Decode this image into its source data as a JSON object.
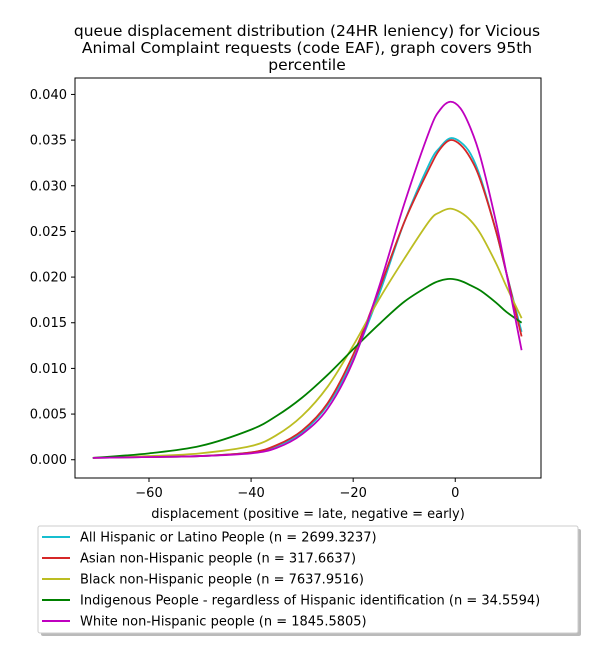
{
  "chart_data": {
    "type": "line",
    "title": [
      "queue displacement distribution (24HR leniency) for Vicious",
      "Animal Complaint  requests (code EAF), graph covers 95th",
      "percentile"
    ],
    "xlabel": "displacement (positive = late, negative = early)",
    "ylabel": "",
    "xlim": [
      -74.5,
      16.8
    ],
    "ylim": [
      -0.002,
      0.0418
    ],
    "xticks": [
      -60,
      -40,
      -20,
      0
    ],
    "xtick_labels": [
      "−60",
      "−40",
      "−20",
      "0"
    ],
    "yticks": [
      0.0,
      0.005,
      0.01,
      0.015,
      0.02,
      0.025,
      0.03,
      0.035,
      0.04
    ],
    "ytick_labels": [
      "0.000",
      "0.005",
      "0.010",
      "0.015",
      "0.020",
      "0.025",
      "0.030",
      "0.035",
      "0.040"
    ],
    "grid": false,
    "legend_position": "below plot",
    "series": [
      {
        "name": "All Hispanic or Latino People (n = 2699.3237)",
        "color": "#17becf",
        "x": [
          -71,
          -60,
          -50,
          -40,
          -35,
          -30,
          -25,
          -20,
          -15,
          -10,
          -5,
          -3,
          -1,
          1,
          3,
          5,
          8,
          10,
          13
        ],
        "y": [
          0.0002,
          0.0003,
          0.0004,
          0.0008,
          0.0015,
          0.003,
          0.006,
          0.011,
          0.018,
          0.026,
          0.0325,
          0.0342,
          0.0352,
          0.0348,
          0.0335,
          0.0308,
          0.025,
          0.0205,
          0.014
        ]
      },
      {
        "name": "Asian non-Hispanic people (n = 317.6637)",
        "color": "#d62728",
        "x": [
          -71,
          -60,
          -50,
          -40,
          -35,
          -30,
          -25,
          -20,
          -15,
          -10,
          -5,
          -3,
          -1,
          1,
          3,
          5,
          8,
          10,
          13
        ],
        "y": [
          0.0002,
          0.0003,
          0.0004,
          0.0008,
          0.0016,
          0.0032,
          0.0062,
          0.0115,
          0.0185,
          0.026,
          0.032,
          0.034,
          0.035,
          0.0345,
          0.033,
          0.0305,
          0.025,
          0.0205,
          0.0135
        ]
      },
      {
        "name": "Black non-Hispanic people (n = 7637.9516)",
        "color": "#bcbd22",
        "x": [
          -71,
          -60,
          -50,
          -40,
          -35,
          -30,
          -25,
          -20,
          -15,
          -10,
          -5,
          -3,
          -1,
          1,
          3,
          5,
          8,
          10,
          13
        ],
        "y": [
          0.0002,
          0.0004,
          0.0007,
          0.0015,
          0.0027,
          0.0048,
          0.008,
          0.0125,
          0.0175,
          0.022,
          0.0262,
          0.0271,
          0.0275,
          0.0271,
          0.0262,
          0.0247,
          0.0215,
          0.019,
          0.0155
        ]
      },
      {
        "name": "Indigenous People - regardless of Hispanic identification (n = 34.5594)",
        "color": "#008000",
        "x": [
          -71,
          -60,
          -50,
          -40,
          -35,
          -30,
          -25,
          -20,
          -15,
          -10,
          -5,
          -3,
          -1,
          1,
          3,
          5,
          8,
          10,
          13
        ],
        "y": [
          0.0002,
          0.0007,
          0.0015,
          0.0033,
          0.0048,
          0.0068,
          0.0093,
          0.0121,
          0.0148,
          0.0173,
          0.0191,
          0.0196,
          0.0198,
          0.0196,
          0.0191,
          0.0185,
          0.0172,
          0.0162,
          0.015
        ]
      },
      {
        "name": "White non-Hispanic people (n = 1845.5805)",
        "color": "#bf00bf",
        "x": [
          -71,
          -60,
          -50,
          -40,
          -35,
          -30,
          -25,
          -20,
          -15,
          -10,
          -5,
          -3,
          -1,
          1,
          3,
          5,
          8,
          10,
          13
        ],
        "y": [
          0.0002,
          0.0003,
          0.0004,
          0.0007,
          0.0013,
          0.0028,
          0.0056,
          0.0108,
          0.0188,
          0.028,
          0.0361,
          0.0383,
          0.0392,
          0.0385,
          0.0363,
          0.033,
          0.026,
          0.0205,
          0.012
        ]
      }
    ]
  }
}
